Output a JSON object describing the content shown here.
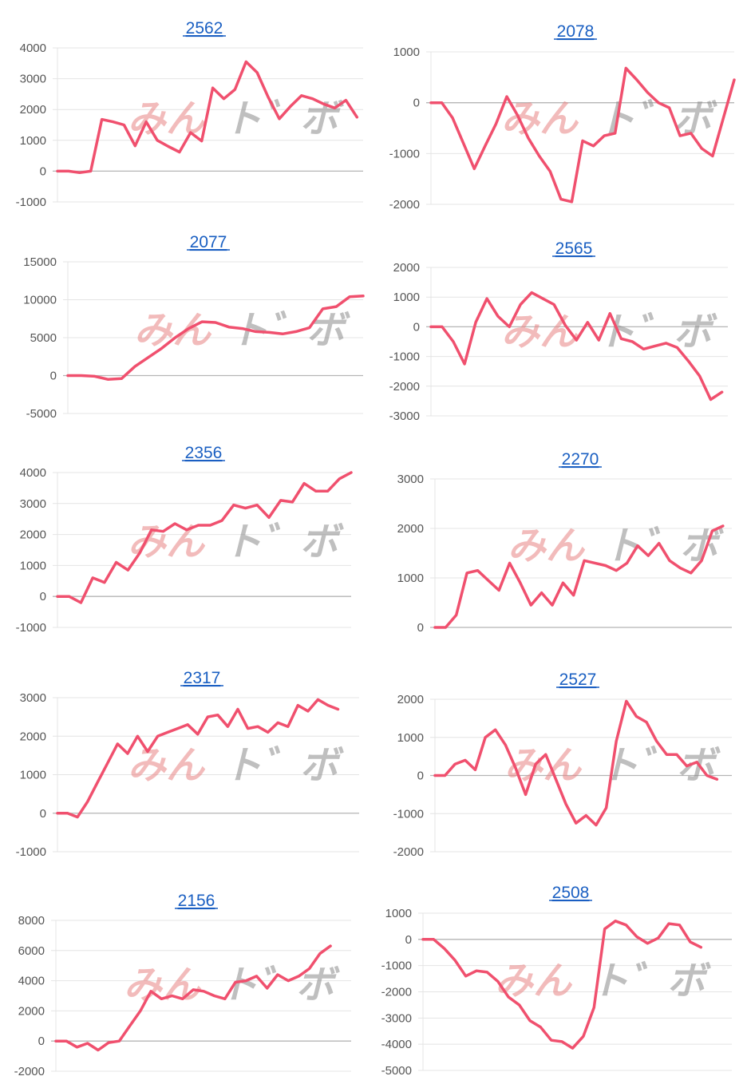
{
  "watermark": {
    "left": "みん",
    "right": "ト゛ボ"
  },
  "colors": {
    "line": "#f0506e",
    "grid": "#e4e4e4",
    "zero": "#b5b5b5",
    "title": "#1a5fc2"
  },
  "chart_data": [
    {
      "type": "line",
      "title": "2562",
      "yticks": [
        "4000",
        "3000",
        "2000",
        "1000",
        "0",
        "-1000"
      ],
      "ylim": [
        -1000,
        4000
      ],
      "values": [
        0,
        0,
        -50,
        0,
        1680,
        1600,
        1500,
        820,
        1600,
        1000,
        800,
        620,
        1250,
        980,
        2700,
        2350,
        2650,
        3550,
        3200,
        2400,
        1700,
        2100,
        2450,
        2350,
        2180,
        2050,
        2300,
        1750
      ]
    },
    {
      "type": "line",
      "title": "2078",
      "yticks": [
        "1000",
        "0",
        "-1000",
        "-2000"
      ],
      "ylim": [
        -2000,
        1000
      ],
      "values": [
        0,
        0,
        -300,
        -800,
        -1300,
        -850,
        -420,
        120,
        -250,
        -700,
        -1050,
        -1350,
        -1900,
        -1950,
        -750,
        -850,
        -650,
        -600,
        680,
        450,
        200,
        0,
        -100,
        -650,
        -600,
        -900,
        -1050,
        -300,
        450
      ]
    },
    {
      "type": "line",
      "title": "2077",
      "yticks": [
        "15000",
        "10000",
        "5000",
        "0",
        "-5000"
      ],
      "ylim": [
        -5000,
        15000
      ],
      "values": [
        0,
        0,
        -100,
        -500,
        -400,
        1200,
        2400,
        3600,
        5000,
        6200,
        7100,
        7000,
        6400,
        6200,
        5800,
        5700,
        5500,
        5800,
        6300,
        8800,
        9100,
        10400,
        10500
      ]
    },
    {
      "type": "line",
      "title": "2565",
      "yticks": [
        "2000",
        "1000",
        "0",
        "-1000",
        "-2000",
        "-3000"
      ],
      "ylim": [
        -3000,
        2000
      ],
      "values": [
        0,
        0,
        -500,
        -1250,
        150,
        950,
        350,
        0,
        750,
        1150,
        950,
        750,
        50,
        -450,
        150,
        -450,
        450,
        -400,
        -500,
        -750,
        -650,
        -550,
        -700,
        -1150,
        -1650,
        -2450,
        -2200
      ]
    },
    {
      "type": "line",
      "title": "2356",
      "yticks": [
        "4000",
        "3000",
        "2000",
        "1000",
        "0",
        "-1000"
      ],
      "ylim": [
        -1000,
        4000
      ],
      "values": [
        0,
        0,
        -200,
        600,
        450,
        1100,
        850,
        1400,
        2150,
        2100,
        2350,
        2150,
        2300,
        2300,
        2450,
        2950,
        2850,
        2950,
        2550,
        3100,
        3050,
        3650,
        3400,
        3400,
        3800,
        4000
      ]
    },
    {
      "type": "line",
      "title": "2270",
      "yticks": [
        "3000",
        "2000",
        "1000",
        "0"
      ],
      "ylim": [
        0,
        3000
      ],
      "values": [
        0,
        0,
        250,
        1100,
        1150,
        950,
        750,
        1300,
        900,
        450,
        700,
        450,
        900,
        650,
        1350,
        1300,
        1250,
        1150,
        1300,
        1650,
        1450,
        1700,
        1350,
        1200,
        1100,
        1350,
        1950,
        2050
      ]
    },
    {
      "type": "line",
      "title": "2317",
      "yticks": [
        "3000",
        "2000",
        "1000",
        "0",
        "-1000"
      ],
      "ylim": [
        -1000,
        3000
      ],
      "values": [
        0,
        0,
        -100,
        300,
        800,
        1300,
        1800,
        1550,
        2000,
        1600,
        2000,
        2100,
        2200,
        2300,
        2050,
        2500,
        2550,
        2250,
        2700,
        2200,
        2250,
        2100,
        2350,
        2250,
        2800,
        2650,
        2950,
        2800,
        2700
      ]
    },
    {
      "type": "line",
      "title": "2527",
      "yticks": [
        "2000",
        "1000",
        "0",
        "-1000",
        "-2000"
      ],
      "ylim": [
        -2000,
        2000
      ],
      "values": [
        0,
        0,
        300,
        400,
        150,
        1000,
        1200,
        800,
        200,
        -500,
        300,
        550,
        -100,
        -750,
        -1250,
        -1050,
        -1300,
        -850,
        900,
        1950,
        1550,
        1400,
        900,
        550,
        550,
        250,
        350,
        0,
        -100
      ]
    },
    {
      "type": "line",
      "title": "2156",
      "yticks": [
        "8000",
        "6000",
        "4000",
        "2000",
        "0",
        "-2000"
      ],
      "ylim": [
        -2000,
        8000
      ],
      "values": [
        0,
        0,
        -400,
        -150,
        -600,
        -100,
        0,
        1000,
        2000,
        3300,
        2800,
        3000,
        2800,
        3400,
        3300,
        3000,
        2800,
        3900,
        4000,
        4300,
        3500,
        4400,
        4000,
        4300,
        4800,
        5800,
        6300
      ]
    },
    {
      "type": "line",
      "title": "2508",
      "yticks": [
        "1000",
        "0",
        "-1000",
        "-2000",
        "-3000",
        "-4000",
        "-5000"
      ],
      "ylim": [
        -5000,
        1000
      ],
      "values": [
        0,
        0,
        -350,
        -800,
        -1400,
        -1200,
        -1250,
        -1600,
        -2200,
        -2500,
        -3100,
        -3350,
        -3850,
        -3900,
        -4150,
        -3700,
        -2600,
        400,
        700,
        550,
        100,
        -150,
        50,
        600,
        550,
        -100,
        -300
      ]
    }
  ]
}
